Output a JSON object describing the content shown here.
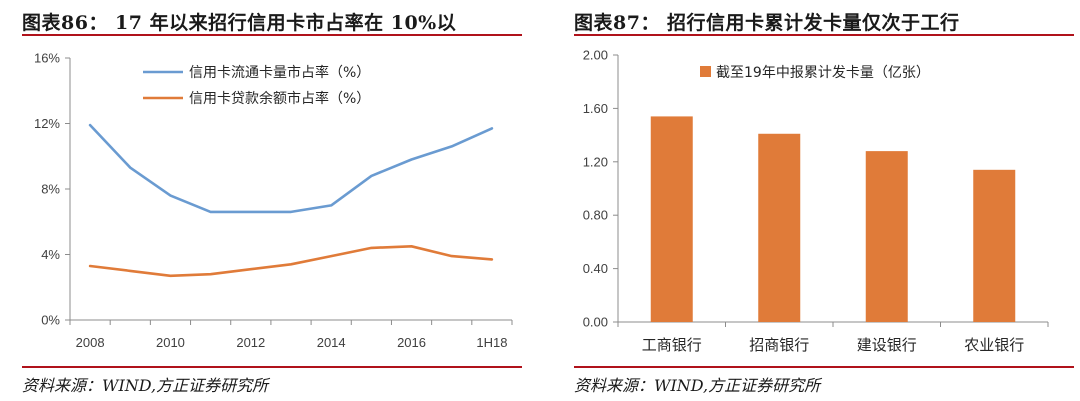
{
  "left": {
    "title": "图表86： 17 年以来招行信用卡市占率在 10%以",
    "source": "资料来源：WIND,方正证券研究所",
    "chart_data": {
      "type": "line",
      "x": [
        "2008",
        "2009",
        "2010",
        "2011",
        "2012",
        "2013",
        "2014",
        "2015",
        "2016",
        "2017",
        "1H18"
      ],
      "xtick_labels": [
        "2008",
        "2010",
        "2012",
        "2014",
        "2016",
        "1H18"
      ],
      "ytick_labels": [
        "0%",
        "4%",
        "8%",
        "12%",
        "16%"
      ],
      "ylim": [
        0,
        16
      ],
      "legend_position": "top-center",
      "series": [
        {
          "name": "信用卡流通卡量市占率（%）",
          "color": "#6a9bd1",
          "values": [
            11.9,
            9.3,
            7.6,
            6.6,
            6.6,
            6.6,
            7.0,
            8.8,
            9.8,
            10.6,
            11.7
          ]
        },
        {
          "name": "信用卡贷款余额市占率（%）",
          "color": "#e07b39",
          "values": [
            3.3,
            3.0,
            2.7,
            2.8,
            3.1,
            3.4,
            3.9,
            4.4,
            4.5,
            3.9,
            3.7
          ]
        }
      ]
    }
  },
  "right": {
    "title": "图表87： 招行信用卡累计发卡量仅次于工行",
    "source": "资料来源：WIND,方正证券研究所",
    "chart_data": {
      "type": "bar",
      "categories": [
        "工商银行",
        "招商银行",
        "建设银行",
        "农业银行"
      ],
      "series": [
        {
          "name": "截至19年中报累计发卡量（亿张）",
          "color": "#e07b39",
          "values": [
            1.54,
            1.41,
            1.28,
            1.14
          ]
        }
      ],
      "ytick_labels": [
        "0.00",
        "0.40",
        "0.80",
        "1.20",
        "1.60",
        "2.00"
      ],
      "ylim": [
        0,
        2.0
      ],
      "legend_position": "top-center"
    }
  }
}
